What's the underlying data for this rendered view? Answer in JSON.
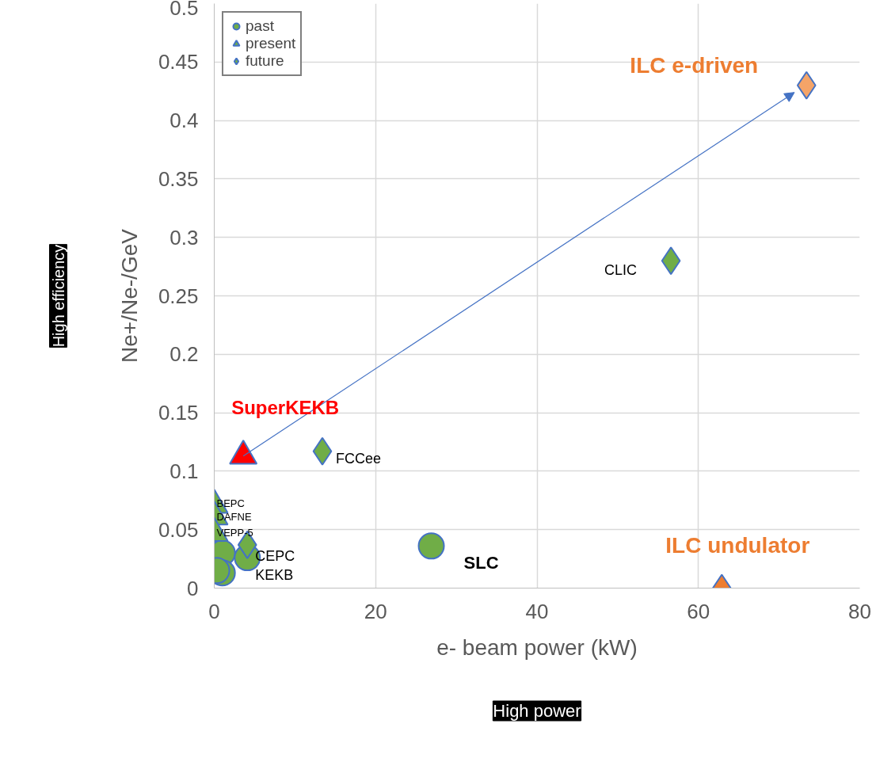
{
  "chart_data": {
    "type": "scatter",
    "xlabel": "e- beam power (kW)",
    "ylabel": "Ne+/Ne-/GeV",
    "xlim": [
      0,
      80
    ],
    "xticks": [
      0,
      20,
      40,
      60,
      80
    ],
    "ylim": [
      0,
      0.5
    ],
    "yticks": [
      0,
      0.05,
      0.1,
      0.15,
      0.2,
      0.25,
      0.3,
      0.35,
      0.4,
      0.45,
      0.5
    ],
    "grid": true,
    "legend": "top left",
    "series": [
      {
        "name": "past",
        "marker": "circle",
        "color": "#70ad47",
        "x": [
          1.0,
          4.1,
          1.0,
          26.9,
          0.3
        ],
        "values": [
          0.03,
          0.026,
          0.013,
          0.036,
          0.015
        ]
      },
      {
        "name": "present",
        "marker": "triangle",
        "colors": [
          "#70ad47",
          "#70ad47",
          "#70ad47",
          "#ff0000"
        ],
        "x": [
          0,
          0,
          0,
          3.6
        ],
        "values": [
          0.071,
          0.061,
          0.047,
          0.113
        ]
      },
      {
        "name": "future",
        "marker": "diamond",
        "colors": [
          "#70ad47",
          "#70ad47",
          "#70ad47",
          "#f4a468",
          "#ed7d31"
        ],
        "x": [
          4.1,
          13.4,
          56.6,
          73.4,
          62.9
        ],
        "values": [
          0.037,
          0.117,
          0.28,
          0.43,
          0.0
        ]
      }
    ],
    "annotations": [
      "SuperKEKB",
      {
        "text": "BEPC",
        "x": 0,
        "y": 0.071
      },
      {
        "text": "DAFNE",
        "x": 0,
        "y": 0.061
      },
      "VEPP-5",
      {
        "text": "CEPC",
        "x": 4.1,
        "y": 0.037
      },
      {
        "text": "KEKB",
        "x": 4.1,
        "y": 0.026
      },
      {
        "text": "FCCee",
        "x": 13.4,
        "y": 0.117
      },
      {
        "text": "CLIC",
        "x": 56.6,
        "y": 0.28
      },
      {
        "text": "SLC",
        "x": 26.9,
        "y": 0.036
      },
      {
        "text": "ILC e-driven",
        "x": 73.4,
        "y": 0.43
      },
      {
        "text": "ILC undulator",
        "x": 62.9,
        "y": 0.0
      },
      "High efficiency",
      "High power"
    ]
  }
}
